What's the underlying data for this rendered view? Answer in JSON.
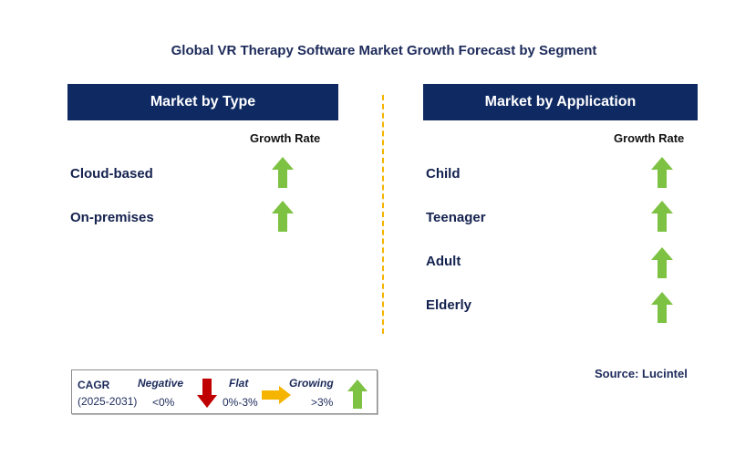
{
  "title": "Global VR Therapy Software Market Growth Forecast by Segment",
  "colors": {
    "header_bg": "#0f2a63",
    "up_arrow": "#7dc242",
    "down_arrow": "#c00000",
    "flat_arrow": "#f4b400",
    "divider": "#f4b400"
  },
  "type_panel": {
    "header": "Market by Type",
    "growth_label": "Growth Rate",
    "rows": [
      {
        "label": "Cloud-based",
        "trend": "growing"
      },
      {
        "label": "On-premises",
        "trend": "growing"
      }
    ]
  },
  "application_panel": {
    "header": "Market by Application",
    "growth_label": "Growth Rate",
    "rows": [
      {
        "label": "Child",
        "trend": "growing"
      },
      {
        "label": "Teenager",
        "trend": "growing"
      },
      {
        "label": "Adult",
        "trend": "growing"
      },
      {
        "label": "Elderly",
        "trend": "growing"
      }
    ]
  },
  "legend": {
    "cagr_label": "CAGR",
    "period": "(2025-2031)",
    "negative_label": "Negative",
    "negative_range": "<0%",
    "flat_label": "Flat",
    "flat_range": "0%-3%",
    "growing_label": "Growing",
    "growing_range": ">3%",
    "icons": {
      "negative": "down-arrow-icon",
      "flat": "right-arrow-icon",
      "growing": "up-arrow-icon"
    }
  },
  "source": "Source: Lucintel"
}
